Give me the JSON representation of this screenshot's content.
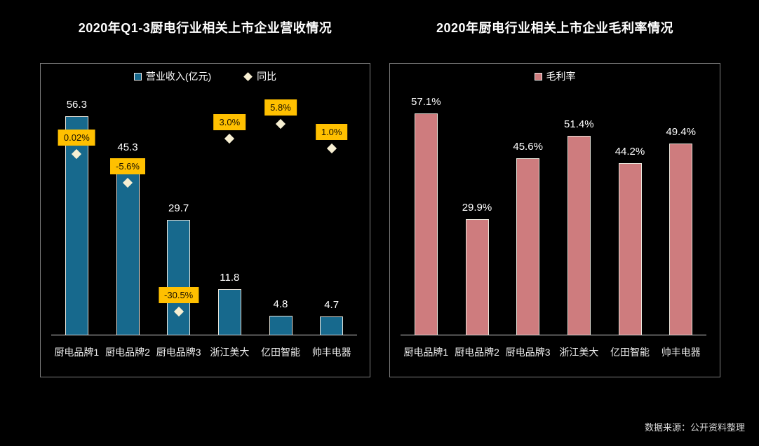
{
  "page": {
    "source_note": "数据来源：公开资料整理"
  },
  "colors": {
    "background": "#000000",
    "bar_teal": "#17698D",
    "bar_pink": "#CE7C7E",
    "diamond_cream": "#F7EFD2",
    "label_box_orange": "#FFC000",
    "panel_border": "#7F7F7F",
    "axis_line": "#D9D9D9",
    "text_white": "#FFFFFF"
  },
  "chart_data": [
    {
      "type": "bar",
      "title": "2020年Q1-3厨电行业相关上市企业营收情况",
      "categories": [
        "厨电品牌1",
        "厨电品牌2",
        "厨电品牌3",
        "浙江美大",
        "亿田智能",
        "帅丰电器"
      ],
      "series": [
        {
          "name": "营业收入(亿元)",
          "type": "bar",
          "marker": "square",
          "axis": "primary",
          "color": "#17698D",
          "values": [
            56.3,
            45.3,
            29.7,
            11.8,
            4.8,
            4.7
          ],
          "labels": [
            "56.3",
            "45.3",
            "29.7",
            "11.8",
            "4.8",
            "4.7"
          ]
        },
        {
          "name": "同比",
          "type": "scatter",
          "marker": "diamond",
          "axis": "secondary",
          "color": "#F7EFD2",
          "values": [
            0.02,
            -5.6,
            -30.5,
            3.0,
            5.8,
            1.0
          ],
          "labels": [
            "0.02%",
            "-5.6%",
            "-30.5%",
            "3.0%",
            "5.8%",
            "1.0%"
          ]
        }
      ],
      "primary_axis": {
        "min": 0,
        "max": 60,
        "visible": false
      },
      "secondary_axis": {
        "min": -35,
        "max": 10,
        "visible": false
      },
      "legend_position": "top",
      "grid": false
    },
    {
      "type": "bar",
      "title": "2020年厨电行业相关上市企业毛利率情况",
      "categories": [
        "厨电品牌1",
        "厨电品牌2",
        "厨电品牌3",
        "浙江美大",
        "亿田智能",
        "帅丰电器"
      ],
      "series": [
        {
          "name": "毛利率",
          "type": "bar",
          "marker": "square",
          "axis": "primary",
          "color": "#CE7C7E",
          "values": [
            57.1,
            29.9,
            45.6,
            51.4,
            44.2,
            49.4
          ],
          "labels": [
            "57.1%",
            "29.9%",
            "45.6%",
            "51.4%",
            "44.2%",
            "49.4%"
          ]
        }
      ],
      "primary_axis": {
        "min": 0,
        "max": 60,
        "visible": false
      },
      "legend_position": "top",
      "grid": false
    }
  ]
}
